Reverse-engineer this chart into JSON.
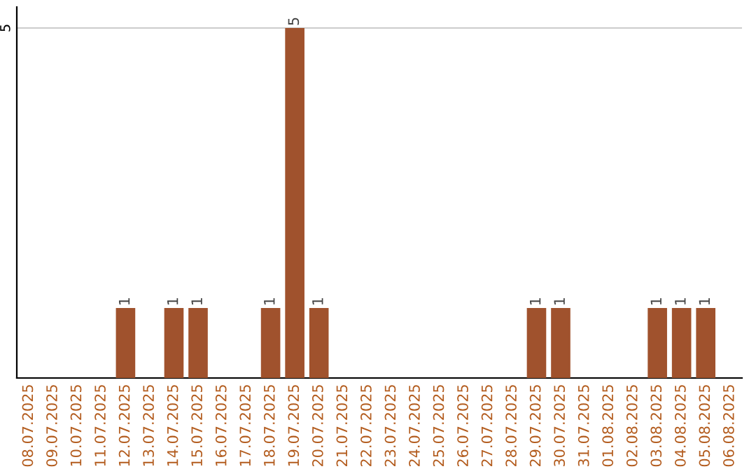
{
  "chart_data": {
    "type": "bar",
    "categories": [
      "08.07.2025",
      "09.07.2025",
      "10.07.2025",
      "11.07.2025",
      "12.07.2025",
      "13.07.2025",
      "14.07.2025",
      "15.07.2025",
      "16.07.2025",
      "17.07.2025",
      "18.07.2025",
      "19.07.2025",
      "20.07.2025",
      "21.07.2025",
      "22.07.2025",
      "23.07.2025",
      "24.07.2025",
      "25.07.2025",
      "26.07.2025",
      "27.07.2025",
      "28.07.2025",
      "29.07.2025",
      "30.07.2025",
      "31.07.2025",
      "01.08.2025",
      "02.08.2025",
      "03.08.2025",
      "04.08.2025",
      "05.08.2025",
      "06.08.2025"
    ],
    "values": [
      0,
      0,
      0,
      0,
      1,
      0,
      1,
      1,
      0,
      0,
      1,
      5,
      1,
      0,
      0,
      0,
      0,
      0,
      0,
      0,
      0,
      1,
      1,
      0,
      0,
      0,
      1,
      1,
      1,
      0
    ],
    "value_labels": [
      null,
      null,
      null,
      null,
      "1",
      null,
      "1",
      "1",
      null,
      null,
      "1",
      "5",
      "1",
      null,
      null,
      null,
      null,
      null,
      null,
      null,
      null,
      "1",
      "1",
      null,
      null,
      null,
      "1",
      "1",
      "1",
      null
    ],
    "color": "#a0522d",
    "ylim": [
      0,
      5.3
    ],
    "yticks": [
      5
    ],
    "grid": "y",
    "legend": false
  }
}
